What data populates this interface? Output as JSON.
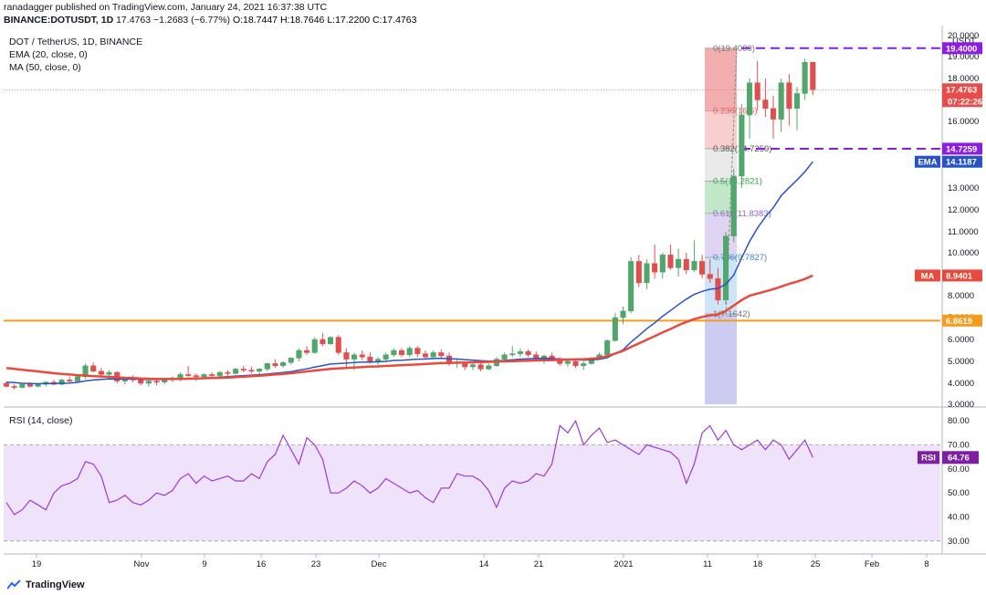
{
  "header": {
    "publish_line": "ranadagger published on TradingView.com, January 24, 2021 16:37:38 UTC",
    "symbol": "BINANCE:DOTUSDT, 1D",
    "last": "17.4763",
    "change": "−1.2683 (−6.77%)",
    "open": "O:18.7447",
    "high": "H:18.7646",
    "low": "L:17.2200",
    "close": "C:17.4763"
  },
  "legend": {
    "title": "DOT / TetherUS, 1D, BINANCE",
    "ema": "EMA (20, close, 0)",
    "ma": "MA (50, close, 0)",
    "rsi": "RSI (14, close)"
  },
  "footer": {
    "brand": "TradingView"
  },
  "colors": {
    "up": "#53a66b",
    "down": "#e04f4f",
    "ema": "#2753c4",
    "ma": "#e84a3e",
    "support": "#f59c1a",
    "resistance": "#8b1ee0",
    "rsi_line": "#9f39d1",
    "rsi_band": "#efe3fb",
    "rsi_badge": "#7e1fa3",
    "price_badge": "#e64c49"
  },
  "chart_data": [
    {
      "type": "candlestick",
      "title": "DOT / TetherUS, 1D, BINANCE",
      "unit": "USDT",
      "ylim": [
        3.0,
        20.0
      ],
      "y_ticks": [
        "3.0000",
        "4.0000",
        "5.0000",
        "6.0000",
        "7.0000",
        "8.0000",
        "10.0000",
        "11.0000",
        "12.0000",
        "13.0000",
        "14.0000",
        "16.0000",
        "18.0000",
        "19.0000",
        "20.0000"
      ],
      "x_labels": [
        "19",
        "Nov",
        "9",
        "16",
        "23",
        "Dec",
        "14",
        "21",
        "2021",
        "11",
        "18",
        "25",
        "Feb",
        "8"
      ],
      "candles": [
        [
          4.0,
          4.1,
          3.8,
          3.85
        ],
        [
          3.85,
          3.95,
          3.7,
          3.8
        ],
        [
          3.8,
          4.0,
          3.75,
          3.95
        ],
        [
          3.95,
          4.05,
          3.8,
          3.85
        ],
        [
          3.85,
          4.0,
          3.8,
          3.95
        ],
        [
          3.95,
          4.1,
          3.85,
          4.05
        ],
        [
          4.05,
          4.15,
          3.9,
          3.95
        ],
        [
          3.95,
          4.2,
          3.9,
          4.15
        ],
        [
          4.15,
          4.3,
          4.0,
          4.1
        ],
        [
          4.1,
          4.35,
          4.05,
          4.3
        ],
        [
          4.3,
          4.9,
          4.2,
          4.8
        ],
        [
          4.8,
          4.95,
          4.5,
          4.55
        ],
        [
          4.55,
          4.7,
          4.3,
          4.4
        ],
        [
          4.4,
          4.6,
          4.2,
          4.5
        ],
        [
          4.5,
          4.55,
          4.0,
          4.1
        ],
        [
          4.1,
          4.3,
          3.95,
          4.2
        ],
        [
          4.2,
          4.35,
          4.05,
          4.15
        ],
        [
          4.15,
          4.25,
          3.9,
          4.0
        ],
        [
          4.0,
          4.2,
          3.85,
          4.1
        ],
        [
          4.1,
          4.25,
          3.9,
          4.05
        ],
        [
          4.05,
          4.2,
          3.95,
          4.15
        ],
        [
          4.15,
          4.3,
          4.05,
          4.25
        ],
        [
          4.25,
          4.5,
          4.1,
          4.4
        ],
        [
          4.4,
          4.8,
          4.3,
          4.35
        ],
        [
          4.35,
          4.45,
          4.1,
          4.3
        ],
        [
          4.3,
          4.45,
          4.2,
          4.4
        ],
        [
          4.4,
          4.5,
          4.25,
          4.35
        ],
        [
          4.35,
          4.55,
          4.3,
          4.5
        ],
        [
          4.5,
          4.6,
          4.3,
          4.45
        ],
        [
          4.45,
          4.7,
          4.4,
          4.65
        ],
        [
          4.65,
          4.8,
          4.5,
          4.6
        ],
        [
          4.6,
          4.75,
          4.45,
          4.55
        ],
        [
          4.55,
          4.7,
          4.4,
          4.65
        ],
        [
          4.65,
          4.95,
          4.55,
          4.9
        ],
        [
          4.9,
          5.1,
          4.7,
          4.8
        ],
        [
          4.8,
          5.0,
          4.7,
          4.95
        ],
        [
          4.95,
          5.2,
          4.85,
          5.15
        ],
        [
          5.15,
          5.6,
          5.0,
          5.5
        ],
        [
          5.5,
          5.7,
          5.3,
          5.4
        ],
        [
          5.4,
          6.1,
          5.35,
          6.0
        ],
        [
          6.0,
          6.3,
          5.7,
          5.8
        ],
        [
          5.8,
          6.15,
          5.75,
          6.1
        ],
        [
          6.1,
          6.2,
          5.3,
          5.4
        ],
        [
          5.4,
          5.6,
          4.7,
          5.1
        ],
        [
          5.1,
          5.4,
          4.6,
          5.3
        ],
        [
          5.3,
          5.5,
          5.05,
          5.2
        ],
        [
          5.2,
          5.4,
          4.9,
          5.0
        ],
        [
          5.0,
          5.2,
          4.85,
          5.1
        ],
        [
          5.1,
          5.4,
          5.0,
          5.3
        ],
        [
          5.3,
          5.6,
          5.2,
          5.5
        ],
        [
          5.5,
          5.6,
          5.2,
          5.3
        ],
        [
          5.3,
          5.7,
          5.2,
          5.6
        ],
        [
          5.6,
          5.7,
          5.2,
          5.35
        ],
        [
          5.35,
          5.5,
          5.1,
          5.2
        ],
        [
          5.2,
          5.5,
          5.1,
          5.4
        ],
        [
          5.4,
          5.55,
          5.15,
          5.25
        ],
        [
          5.25,
          5.4,
          4.8,
          4.9
        ],
        [
          4.9,
          5.1,
          4.7,
          4.95
        ],
        [
          4.95,
          5.0,
          4.6,
          4.75
        ],
        [
          4.75,
          4.95,
          4.6,
          4.85
        ],
        [
          4.85,
          4.95,
          4.55,
          4.65
        ],
        [
          4.65,
          4.9,
          4.6,
          4.8
        ],
        [
          4.8,
          5.2,
          4.75,
          5.1
        ],
        [
          5.1,
          5.4,
          5.0,
          5.3
        ],
        [
          5.3,
          5.7,
          5.2,
          5.35
        ],
        [
          5.35,
          5.6,
          5.2,
          5.45
        ],
        [
          5.45,
          5.55,
          5.2,
          5.3
        ],
        [
          5.3,
          5.45,
          5.05,
          5.15
        ],
        [
          5.15,
          5.3,
          4.9,
          5.25
        ],
        [
          5.25,
          5.4,
          5.0,
          5.05
        ],
        [
          5.05,
          5.2,
          4.8,
          4.9
        ],
        [
          4.9,
          5.1,
          4.75,
          5.0
        ],
        [
          5.0,
          5.1,
          4.7,
          4.8
        ],
        [
          4.8,
          5.0,
          4.6,
          4.9
        ],
        [
          4.9,
          5.2,
          4.85,
          5.15
        ],
        [
          5.15,
          5.4,
          5.1,
          5.3
        ],
        [
          5.3,
          6.0,
          5.25,
          5.95
        ],
        [
          5.95,
          7.2,
          5.9,
          7.0
        ],
        [
          7.0,
          7.5,
          6.7,
          7.3
        ],
        [
          7.3,
          9.8,
          7.2,
          9.6
        ],
        [
          9.6,
          9.9,
          8.4,
          8.6
        ],
        [
          8.6,
          9.7,
          8.3,
          9.5
        ],
        [
          9.5,
          10.4,
          8.8,
          9.1
        ],
        [
          9.1,
          10.0,
          8.8,
          9.9
        ],
        [
          9.9,
          10.4,
          9.2,
          9.3
        ],
        [
          9.3,
          10.2,
          8.9,
          9.7
        ],
        [
          9.7,
          10.0,
          9.0,
          9.2
        ],
        [
          9.2,
          10.6,
          9.1,
          9.6
        ],
        [
          9.6,
          9.9,
          8.8,
          9.0
        ],
        [
          9.0,
          9.7,
          8.6,
          8.8
        ],
        [
          8.8,
          9.3,
          7.6,
          7.8
        ],
        [
          7.8,
          11.0,
          7.6,
          10.8
        ],
        [
          10.8,
          13.8,
          10.5,
          13.5
        ],
        [
          13.5,
          16.8,
          13.0,
          16.3
        ],
        [
          16.3,
          18.0,
          15.2,
          17.8
        ],
        [
          17.8,
          18.8,
          16.5,
          17.0
        ],
        [
          17.0,
          18.0,
          16.2,
          16.6
        ],
        [
          16.6,
          17.2,
          15.2,
          16.1
        ],
        [
          16.1,
          18.0,
          15.5,
          17.8
        ],
        [
          17.8,
          18.2,
          15.8,
          16.6
        ],
        [
          16.6,
          17.6,
          15.6,
          17.3
        ],
        [
          17.3,
          18.9,
          17.0,
          18.74
        ],
        [
          18.74,
          18.76,
          17.22,
          17.4763
        ]
      ],
      "ema_20": [
        4.05,
        4.03,
        4.0,
        3.99,
        3.98,
        3.99,
        3.99,
        4.0,
        4.01,
        4.04,
        4.11,
        4.15,
        4.18,
        4.2,
        4.19,
        4.19,
        4.19,
        4.18,
        4.17,
        4.17,
        4.17,
        4.18,
        4.2,
        4.22,
        4.23,
        4.25,
        4.26,
        4.28,
        4.3,
        4.33,
        4.35,
        4.37,
        4.39,
        4.42,
        4.46,
        4.49,
        4.53,
        4.6,
        4.66,
        4.74,
        4.81,
        4.88,
        4.9,
        4.92,
        4.95,
        4.97,
        4.97,
        4.98,
        5.0,
        5.04,
        5.05,
        5.08,
        5.1,
        5.11,
        5.13,
        5.14,
        5.12,
        5.11,
        5.08,
        5.06,
        5.03,
        5.01,
        5.02,
        5.04,
        5.07,
        5.1,
        5.12,
        5.13,
        5.14,
        5.13,
        5.11,
        5.1,
        5.08,
        5.06,
        5.07,
        5.09,
        5.17,
        5.35,
        5.53,
        5.88,
        6.18,
        6.49,
        6.76,
        7.06,
        7.32,
        7.59,
        7.84,
        8.06,
        8.2,
        8.3,
        8.34,
        8.53,
        8.96,
        9.76,
        10.54,
        11.17,
        11.68,
        12.1,
        12.65,
        13.01,
        13.34,
        13.69,
        14.1187
      ],
      "ma_50": [
        4.7,
        4.66,
        4.62,
        4.58,
        4.54,
        4.5,
        4.46,
        4.43,
        4.4,
        4.37,
        4.35,
        4.33,
        4.31,
        4.29,
        4.27,
        4.25,
        4.24,
        4.22,
        4.21,
        4.2,
        4.2,
        4.2,
        4.2,
        4.21,
        4.22,
        4.23,
        4.24,
        4.25,
        4.26,
        4.28,
        4.3,
        4.32,
        4.34,
        4.37,
        4.4,
        4.43,
        4.46,
        4.5,
        4.54,
        4.58,
        4.62,
        4.66,
        4.68,
        4.7,
        4.72,
        4.74,
        4.76,
        4.77,
        4.79,
        4.81,
        4.83,
        4.84,
        4.86,
        4.88,
        4.9,
        4.92,
        4.93,
        4.94,
        4.95,
        4.96,
        4.97,
        4.98,
        4.99,
        5.0,
        5.01,
        5.02,
        5.03,
        5.04,
        5.05,
        5.06,
        5.07,
        5.08,
        5.09,
        5.1,
        5.12,
        5.16,
        5.24,
        5.36,
        5.48,
        5.66,
        5.82,
        5.99,
        6.15,
        6.32,
        6.48,
        6.65,
        6.8,
        6.93,
        7.03,
        7.1,
        7.15,
        7.3,
        7.55,
        7.8,
        8.0,
        8.1,
        8.2,
        8.3,
        8.42,
        8.55,
        8.65,
        8.78,
        8.9401
      ],
      "horizontal_levels": [
        {
          "name": "support",
          "value": 6.8619,
          "label": "6.8619"
        },
        {
          "name": "resistance-1",
          "value": 19.4,
          "label": "19.4000"
        },
        {
          "name": "resistance-2",
          "value": 14.7259,
          "label": "14.7259"
        }
      ],
      "fibonacci": {
        "levels": [
          {
            "ratio": "0",
            "price": 19.4,
            "label": "0(19.4000)"
          },
          {
            "ratio": "0.236",
            "price": 16.5,
            "label": "0.236(16.5)"
          },
          {
            "ratio": "0.382",
            "price": 14.7259,
            "label": "0.382(14.7259)"
          },
          {
            "ratio": "0.5",
            "price": 13.2821,
            "label": "0.5(13.2821)"
          },
          {
            "ratio": "0.618",
            "price": 11.8383,
            "label": "0.618(11.8383)"
          },
          {
            "ratio": "0.786",
            "price": 9.7827,
            "label": "0.786(9.7827)"
          },
          {
            "ratio": "1",
            "price": 7.1642,
            "label": "1(7.1642)"
          }
        ]
      },
      "price_badges": [
        {
          "name": "resistance-top-badge",
          "value": 19.4,
          "text": "19.4000",
          "color": "#8b1ee0"
        },
        {
          "name": "last-price-badge",
          "value": 17.4763,
          "text": "17.4763",
          "sub": "07:22:26",
          "color": "#e64c49"
        },
        {
          "name": "resistance-badge",
          "value": 14.7259,
          "text": "14.7259",
          "color": "#8b1ee0"
        },
        {
          "name": "ema-badge",
          "value": 14.1187,
          "text": "14.1187",
          "label": "EMA",
          "color": "#2753c4"
        },
        {
          "name": "ma-badge",
          "value": 8.9401,
          "text": "8.9401",
          "label": "MA",
          "color": "#e84a3e"
        },
        {
          "name": "support-badge",
          "value": 6.8619,
          "text": "6.8619",
          "color": "#f59c1a"
        }
      ]
    },
    {
      "type": "line",
      "title": "RSI (14, close)",
      "ylim": [
        25,
        85
      ],
      "y_ticks": [
        "30.00",
        "40.00",
        "50.00",
        "60.00",
        "70.00",
        "80.00"
      ],
      "band": [
        30,
        70
      ],
      "values": [
        46,
        41,
        43,
        47,
        45,
        43,
        50,
        53,
        54,
        56,
        63,
        62,
        57,
        46,
        47,
        49,
        46,
        45,
        47,
        50,
        49,
        51,
        56,
        58,
        54,
        57,
        55,
        56,
        57,
        55,
        55,
        58,
        56,
        63,
        66,
        74,
        68,
        62,
        73,
        70,
        64,
        50,
        50,
        52,
        55,
        53,
        50,
        52,
        56,
        54,
        52,
        50,
        51,
        48,
        46,
        52,
        52,
        58,
        57,
        57,
        55,
        51,
        44,
        52,
        55,
        54,
        55,
        58,
        57,
        62,
        78,
        75,
        80,
        70,
        74,
        77,
        71,
        72,
        70,
        68,
        66,
        70,
        69,
        68,
        67,
        64,
        54,
        62,
        75,
        78,
        72,
        76,
        70,
        68,
        70,
        72,
        68,
        72,
        70,
        64,
        68,
        72,
        64.76
      ]
    },
    {
      "type": "axis",
      "x_labels": [
        "19",
        "Nov",
        "9",
        "16",
        "23",
        "Dec",
        "14",
        "21",
        "2021",
        "11",
        "18",
        "25",
        "Feb",
        "8"
      ]
    }
  ]
}
